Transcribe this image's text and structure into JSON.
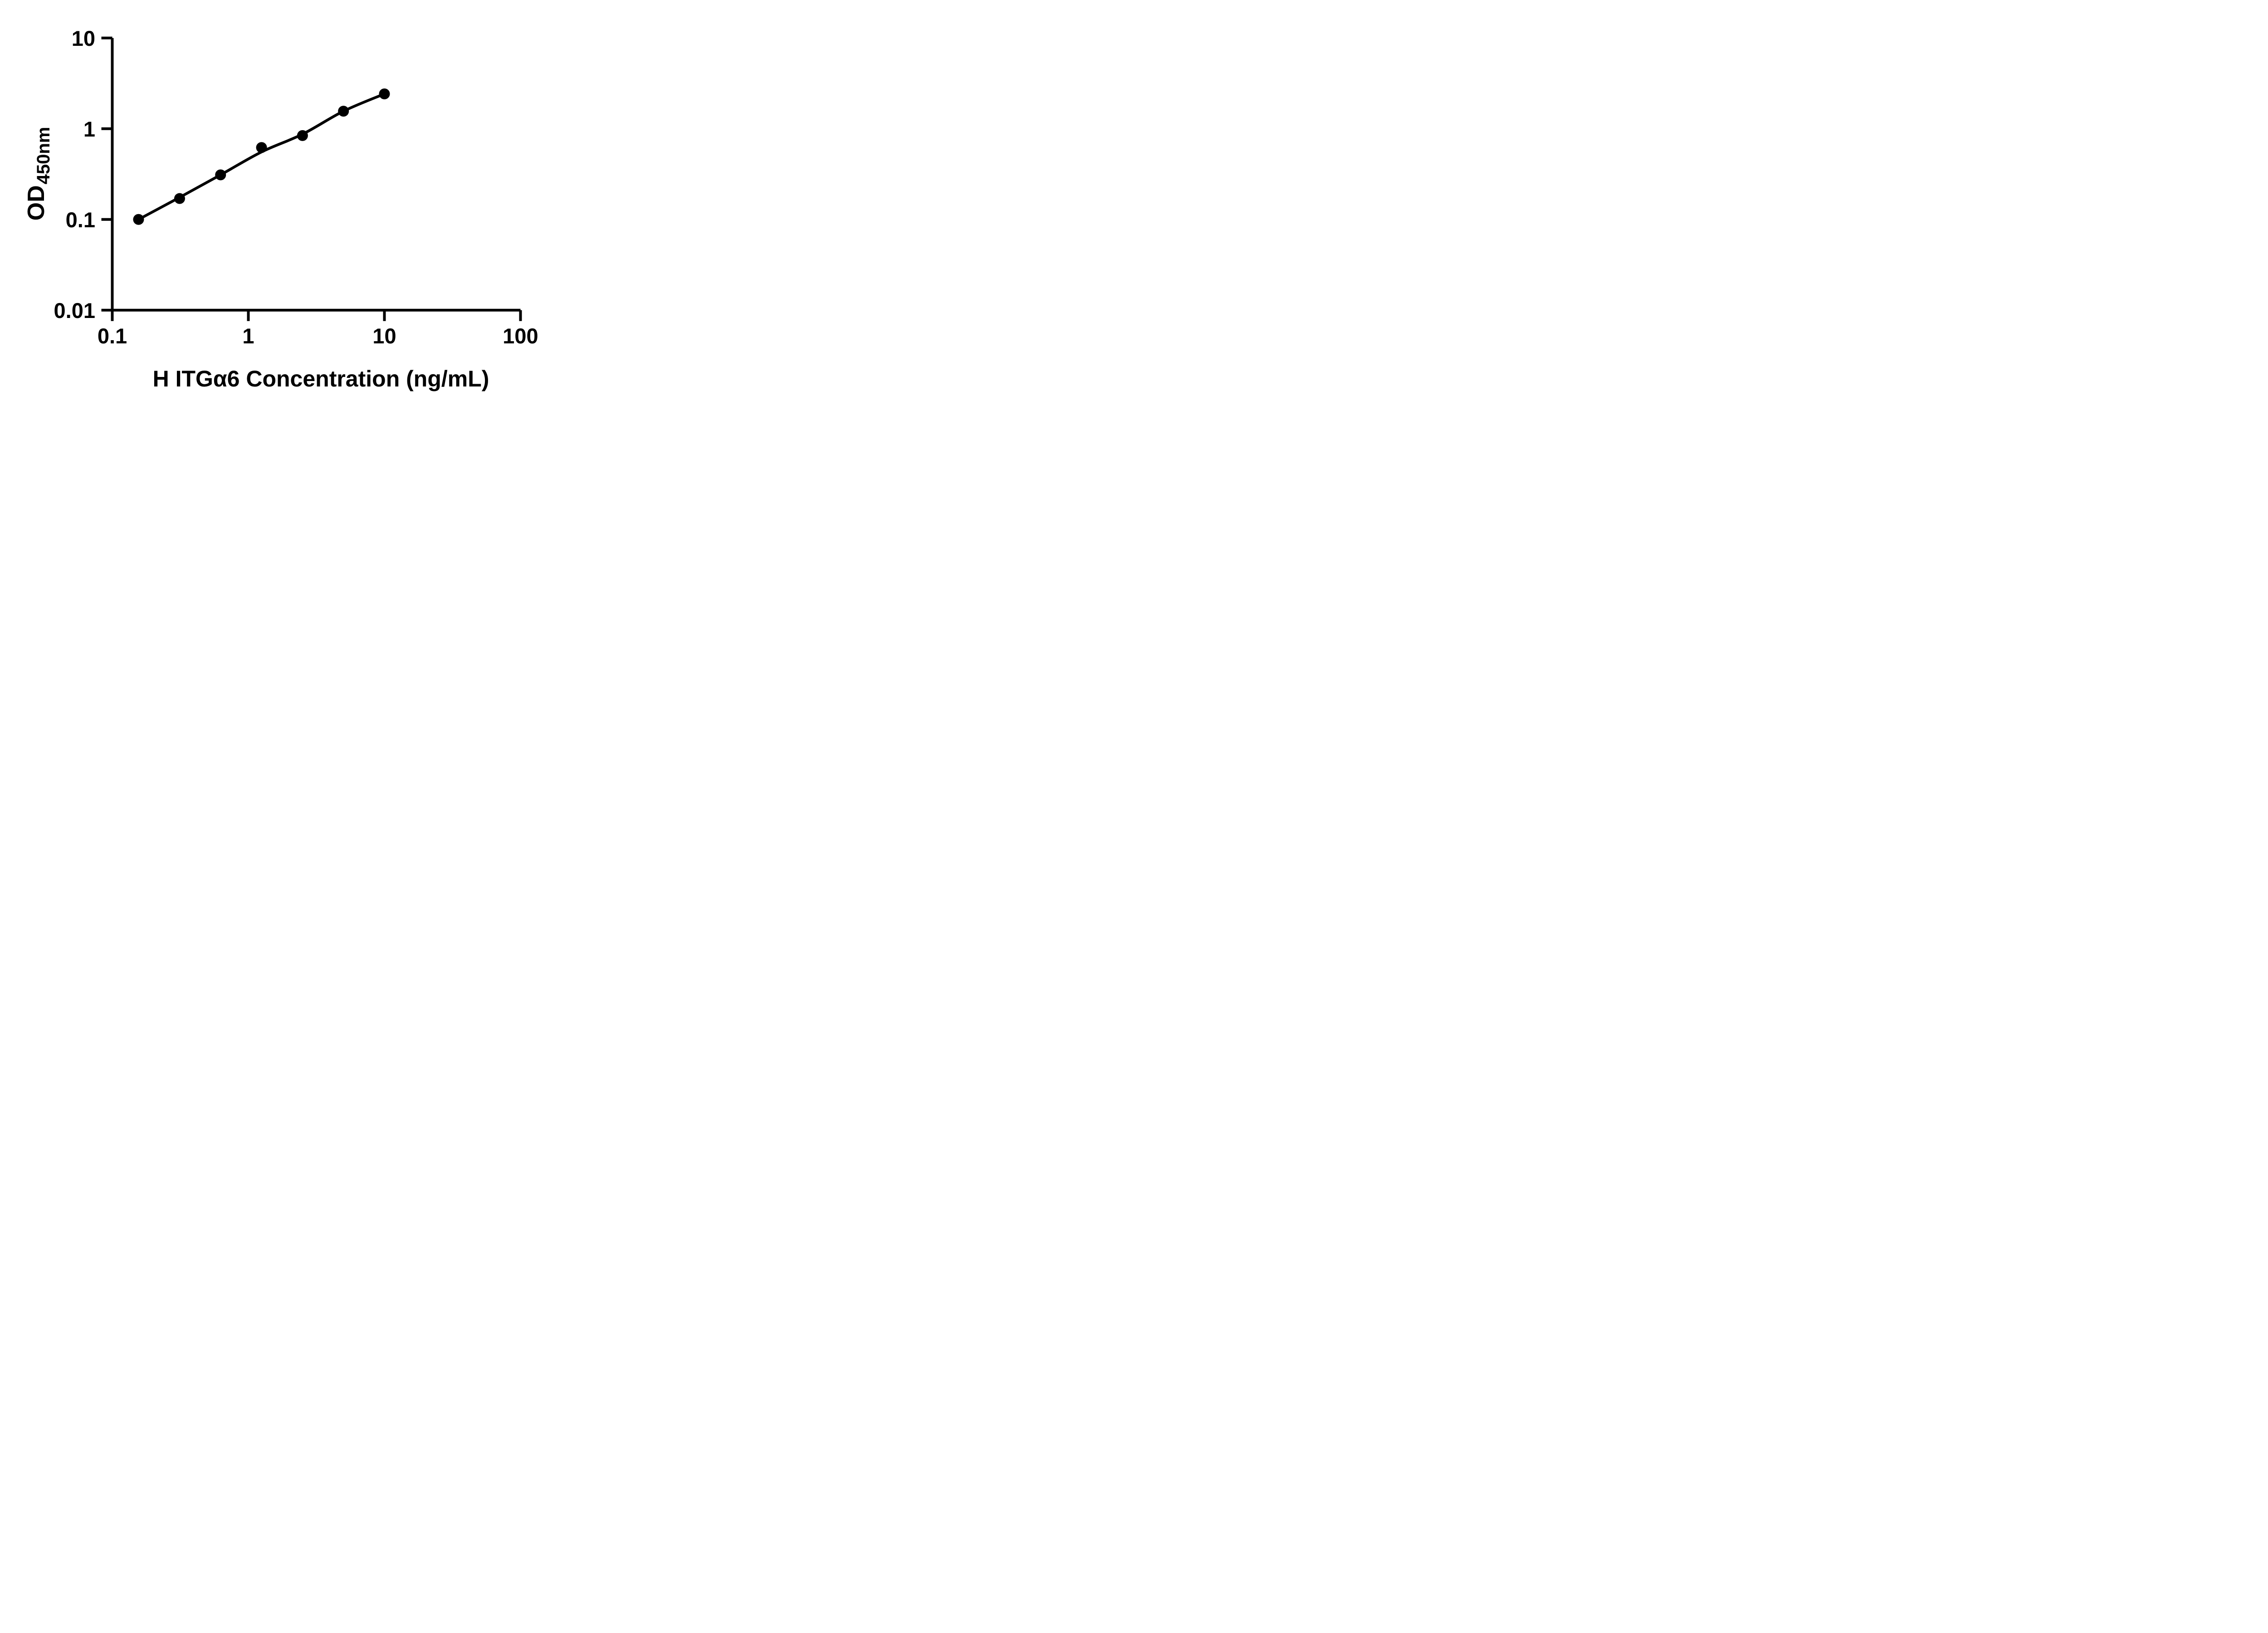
{
  "chart_data": {
    "type": "scatter",
    "title": "",
    "xlabel": "H ITGα6 Concentration (ng/mL)",
    "ylabel_main": "OD",
    "ylabel_sub": "450nm",
    "x_scale": "log",
    "y_scale": "log",
    "xlim": [
      0.1,
      100
    ],
    "ylim": [
      0.01,
      10
    ],
    "x_ticks": [
      0.1,
      1,
      10,
      100
    ],
    "x_tick_labels": [
      "0.1",
      "1",
      "10",
      "100"
    ],
    "y_ticks": [
      0.01,
      0.1,
      1,
      10
    ],
    "y_tick_labels": [
      "0.01",
      "0.1",
      "1",
      "10"
    ],
    "grid": false,
    "legend": "none",
    "series": [
      {
        "name": "standard curve data points",
        "marker": "filled-circle",
        "color": "#000000",
        "x": [
          0.156,
          0.3125,
          0.625,
          1.25,
          2.5,
          5,
          10
        ],
        "y": [
          0.1,
          0.17,
          0.31,
          0.62,
          0.84,
          1.56,
          2.42
        ]
      }
    ],
    "fit_line": {
      "name": "fitted standard curve",
      "color": "#000000",
      "x": [
        0.156,
        0.3125,
        0.625,
        1.25,
        2.5,
        5,
        10
      ],
      "y": [
        0.1,
        0.175,
        0.31,
        0.555,
        0.87,
        1.56,
        2.42
      ]
    }
  },
  "colors": {
    "foreground": "#000000",
    "background": "#ffffff"
  }
}
